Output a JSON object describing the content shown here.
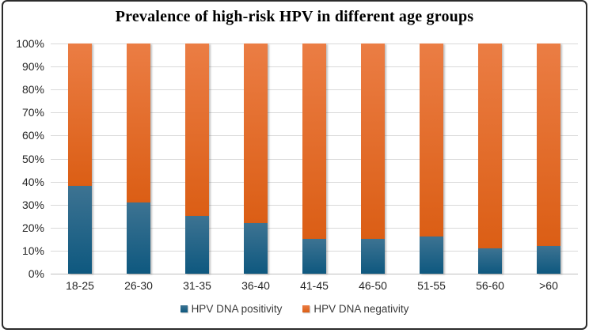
{
  "title": "Prevalence of high-risk HPV in different age groups",
  "colors": {
    "positivity_gradient_top": "#3d7392",
    "positivity_gradient_bottom": "#0e587f",
    "negativity_gradient_top": "#eb7d44",
    "negativity_gradient_bottom": "#db5e15",
    "gridline": "#d9d9d9",
    "axis_line": "#bfbfbf",
    "tick_text": "#262626",
    "legend_text": "#3a3a3a",
    "border": "#2b2b2b"
  },
  "chart_data": {
    "type": "bar",
    "subtype": "stacked-100",
    "title": "Prevalence of high-risk HPV in different age groups",
    "categories": [
      "18-25",
      "26-30",
      "31-35",
      "36-40",
      "41-45",
      "46-50",
      "51-55",
      "56-60",
      ">60"
    ],
    "series": [
      {
        "name": "HPV DNA positivity",
        "color": "#1f6390",
        "values": [
          38,
          31,
          25,
          22,
          15,
          15,
          16,
          11,
          12
        ]
      },
      {
        "name": "HPV DNA negativity",
        "color": "#e26a24",
        "values": [
          62,
          69,
          75,
          78,
          85,
          85,
          84,
          89,
          88
        ]
      }
    ],
    "xlabel": "",
    "ylabel": "",
    "ylim": [
      0,
      100
    ],
    "yticks": [
      "0%",
      "10%",
      "20%",
      "30%",
      "40%",
      "50%",
      "60%",
      "70%",
      "80%",
      "90%",
      "100%"
    ],
    "grid": true,
    "legend_position": "bottom"
  }
}
